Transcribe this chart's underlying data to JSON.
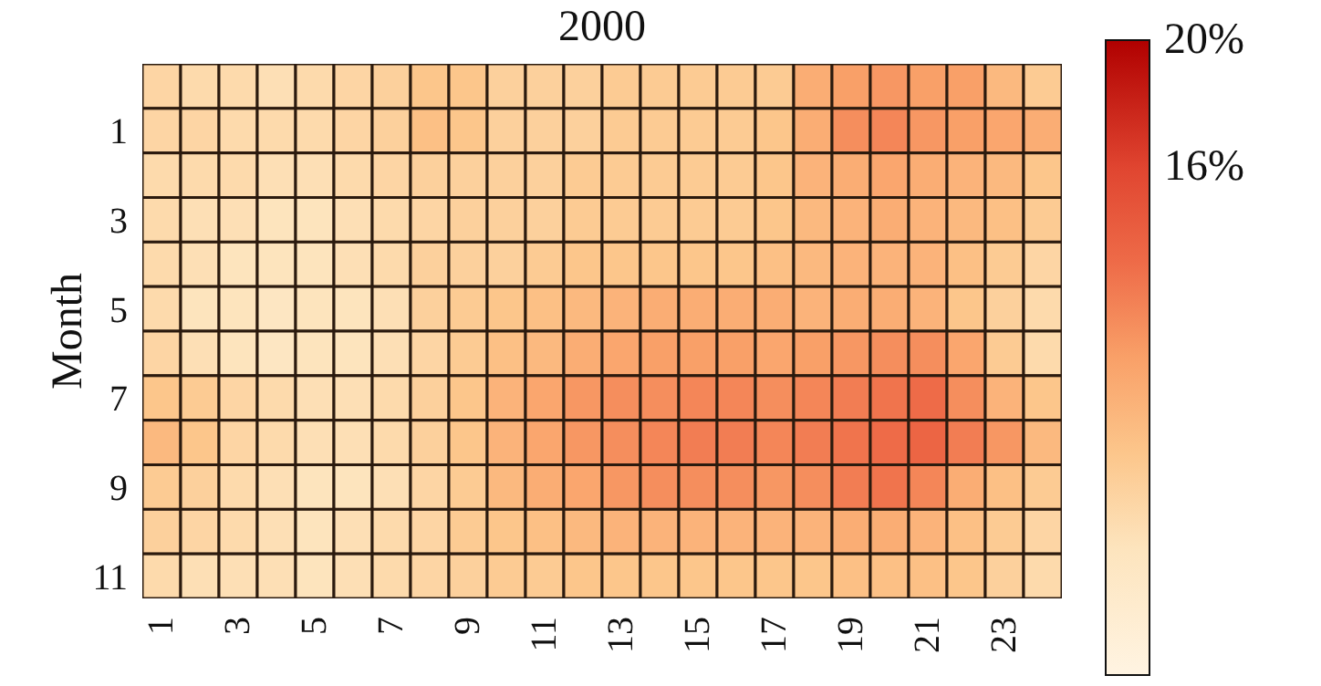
{
  "chart_data": {
    "type": "heatmap",
    "title": "2000",
    "ylabel": "Month",
    "categories": [
      "1",
      null,
      "3",
      null,
      "5",
      null,
      "7",
      null,
      "9",
      null,
      "11",
      null,
      "13",
      null,
      "15",
      null,
      "17",
      null,
      "19",
      null,
      "21",
      null,
      "23",
      null
    ],
    "y_categories": [
      null,
      "1",
      null,
      "3",
      null,
      "5",
      null,
      "7",
      null,
      "9",
      null,
      "11"
    ],
    "cells": [
      [
        5.5,
        5,
        5,
        4.5,
        5,
        5.5,
        6,
        7,
        7,
        6,
        6,
        6,
        6.5,
        6.5,
        6.5,
        6.5,
        6.5,
        9,
        10,
        10.5,
        10,
        10,
        8,
        6.5
      ],
      [
        5.5,
        5.5,
        5,
        5,
        5,
        5.5,
        6,
        7.5,
        7,
        6,
        6,
        6,
        6.5,
        6.5,
        6.5,
        6.5,
        7,
        9,
        11,
        11.5,
        10.5,
        10,
        9.5,
        9
      ],
      [
        5,
        5,
        5,
        4.5,
        4.5,
        5,
        5.5,
        6,
        6,
        6,
        6,
        6.5,
        6.5,
        6.5,
        6.5,
        6.5,
        7,
        8.5,
        9,
        9.5,
        9,
        8.5,
        8,
        7
      ],
      [
        5,
        4.5,
        4.5,
        4,
        4,
        4.5,
        5,
        5.5,
        6,
        6,
        6,
        6.5,
        6.5,
        6.5,
        6.5,
        6.5,
        7,
        8,
        8.5,
        9,
        8.5,
        8,
        7.5,
        6.5
      ],
      [
        5,
        4.5,
        4,
        4,
        4,
        4.5,
        5,
        6,
        6,
        6,
        6.5,
        7,
        7,
        7,
        7,
        7,
        7.5,
        8,
        8.5,
        8.5,
        8.5,
        7.5,
        6.5,
        5.5
      ],
      [
        5,
        4,
        4,
        3.5,
        4,
        4,
        4.5,
        6,
        6.5,
        7,
        7.5,
        8,
        8.5,
        9,
        9,
        9,
        9,
        8.5,
        9,
        9,
        8.5,
        7,
        6,
        5
      ],
      [
        5.5,
        4.5,
        4,
        3.5,
        4,
        4,
        4.5,
        5.5,
        6.5,
        7.5,
        8,
        9,
        9.5,
        10,
        10,
        10,
        9.5,
        10,
        10.5,
        11,
        11,
        9.5,
        6.5,
        5
      ],
      [
        7,
        6.5,
        5.5,
        5,
        4.5,
        4.5,
        5,
        6,
        7,
        8.5,
        9.5,
        10.5,
        11,
        11,
        11.5,
        11.5,
        11,
        11.5,
        12,
        12.5,
        13,
        11,
        8.5,
        7
      ],
      [
        8,
        7,
        5.5,
        5,
        4.5,
        4.5,
        5,
        6,
        7,
        8.5,
        9.5,
        10.5,
        11,
        11.5,
        12,
        12,
        11.5,
        12,
        12.5,
        13,
        13.5,
        12,
        10.5,
        8
      ],
      [
        6.5,
        6,
        5,
        4.5,
        4,
        4,
        4.5,
        5.5,
        6.5,
        8,
        9,
        9.5,
        10.5,
        11,
        11,
        11,
        10.5,
        11,
        12,
        12.5,
        11.5,
        9,
        7.5,
        6.5
      ],
      [
        6,
        5.5,
        5,
        4.5,
        4,
        4.5,
        5,
        5.5,
        6.5,
        7,
        7.5,
        8,
        8.5,
        8.5,
        8.5,
        8.5,
        8.5,
        8.5,
        9,
        9,
        8.5,
        7.5,
        6.5,
        5.5
      ],
      [
        5,
        4.5,
        4.5,
        4.5,
        4,
        4.5,
        5,
        5.5,
        6,
        6.5,
        6.5,
        7,
        7,
        7,
        7,
        7,
        7,
        7,
        7.5,
        7.5,
        7.5,
        7,
        6,
        5
      ]
    ],
    "clim": [
      0,
      20
    ],
    "cticks": [
      {
        "value": 16,
        "label": "16%"
      },
      {
        "value": 20,
        "label": "20%"
      }
    ]
  }
}
